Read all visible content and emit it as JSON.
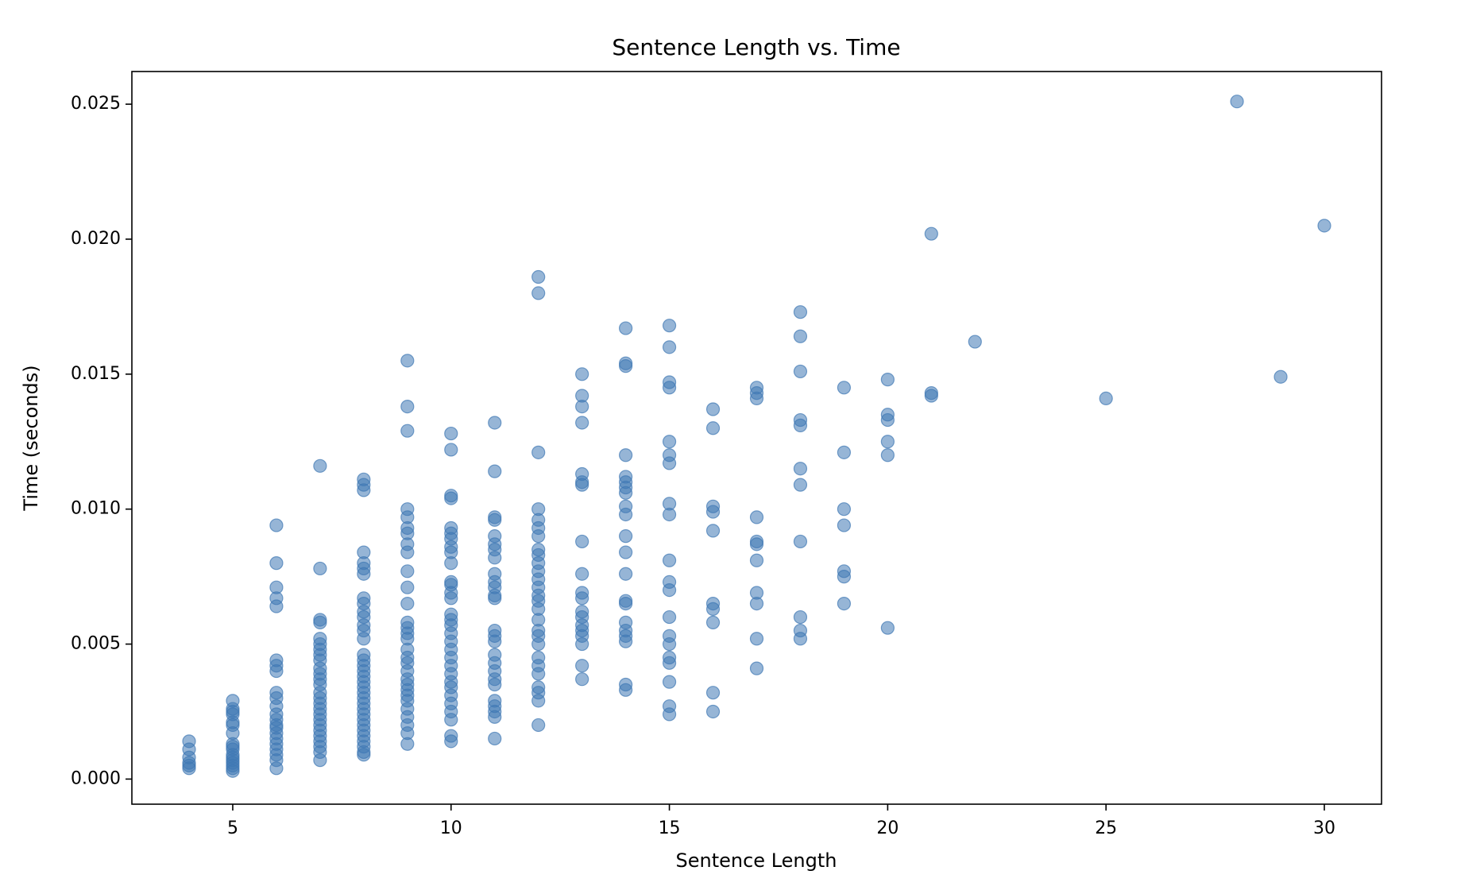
{
  "chart_data": {
    "type": "scatter",
    "title": "Sentence Length vs. Time",
    "x_label": "Sentence Length",
    "y_label": "Time (seconds)",
    "color": "#3f78b4",
    "grid": false,
    "xlim": [
      2.69,
      31.31
    ],
    "ylim": [
      -0.00093,
      0.02621
    ],
    "xticks": [
      5,
      10,
      15,
      20,
      25,
      30
    ],
    "yticks": [
      {
        "value": 0,
        "label": "0.000"
      },
      0.005,
      {
        "value": 0.01,
        "label": "0.010"
      },
      0.015,
      {
        "value": 0.02,
        "label": "0.020"
      },
      0.025
    ],
    "x": [
      4,
      4,
      4,
      4,
      4,
      4,
      5,
      5,
      5,
      5,
      5,
      5,
      5,
      5,
      5,
      5,
      5,
      5,
      5,
      5,
      5,
      5,
      5,
      6,
      6,
      6,
      6,
      6,
      6,
      6,
      6,
      6,
      6,
      6,
      6,
      6,
      6,
      6,
      6,
      6,
      6,
      6,
      6,
      6,
      6,
      7,
      7,
      7,
      7,
      7,
      7,
      7,
      7,
      7,
      7,
      7,
      7,
      7,
      7,
      7,
      7,
      7,
      7,
      7,
      7,
      7,
      7,
      7,
      7,
      7,
      7,
      8,
      8,
      8,
      8,
      8,
      8,
      8,
      8,
      8,
      8,
      8,
      8,
      8,
      8,
      8,
      8,
      8,
      8,
      8,
      8,
      8,
      8,
      8,
      8,
      8,
      8,
      8,
      8,
      8,
      8,
      8,
      8,
      8,
      8,
      9,
      9,
      9,
      9,
      9,
      9,
      9,
      9,
      9,
      9,
      9,
      9,
      9,
      9,
      9,
      9,
      9,
      9,
      9,
      9,
      9,
      9,
      9,
      9,
      9,
      9,
      9,
      9,
      9,
      9,
      10,
      10,
      10,
      10,
      10,
      10,
      10,
      10,
      10,
      10,
      10,
      10,
      10,
      10,
      10,
      10,
      10,
      10,
      10,
      10,
      10,
      10,
      10,
      10,
      10,
      10,
      10,
      10,
      10,
      10,
      10,
      11,
      11,
      11,
      11,
      11,
      11,
      11,
      11,
      11,
      11,
      11,
      11,
      11,
      11,
      11,
      11,
      11,
      11,
      11,
      11,
      11,
      11,
      11,
      11,
      11,
      11,
      12,
      12,
      12,
      12,
      12,
      12,
      12,
      12,
      12,
      12,
      12,
      12,
      12,
      12,
      12,
      12,
      12,
      12,
      12,
      12,
      12,
      12,
      12,
      12,
      12,
      12,
      12,
      13,
      13,
      13,
      13,
      13,
      13,
      13,
      13,
      13,
      13,
      13,
      13,
      13,
      13,
      13,
      13,
      13,
      13,
      13,
      14,
      14,
      14,
      14,
      14,
      14,
      14,
      14,
      14,
      14,
      14,
      14,
      14,
      14,
      14,
      14,
      14,
      14,
      14,
      14,
      14,
      15,
      15,
      15,
      15,
      15,
      15,
      15,
      15,
      15,
      15,
      15,
      15,
      15,
      15,
      15,
      15,
      15,
      15,
      15,
      15,
      16,
      16,
      16,
      16,
      16,
      16,
      16,
      16,
      16,
      16,
      17,
      17,
      17,
      17,
      17,
      17,
      17,
      17,
      17,
      17,
      17,
      18,
      18,
      18,
      18,
      18,
      18,
      18,
      18,
      18,
      18,
      18,
      19,
      19,
      19,
      19,
      19,
      19,
      19,
      20,
      20,
      20,
      20,
      20,
      20,
      21,
      21,
      21,
      22,
      25,
      28,
      29,
      30
    ],
    "y": [
      0.0014,
      0.0011,
      0.0008,
      0.0006,
      0.0005,
      0.0004,
      0.0029,
      0.0026,
      0.0025,
      0.0024,
      0.0021,
      0.002,
      0.0017,
      0.0013,
      0.0012,
      0.0011,
      0.0009,
      0.0008,
      0.0007,
      0.0006,
      0.0005,
      0.0004,
      0.0003,
      0.0094,
      0.008,
      0.0071,
      0.0067,
      0.0064,
      0.0044,
      0.0042,
      0.004,
      0.0032,
      0.003,
      0.0027,
      0.0024,
      0.0022,
      0.002,
      0.0019,
      0.0017,
      0.0015,
      0.0013,
      0.0011,
      0.0009,
      0.0007,
      0.0004,
      0.0116,
      0.0078,
      0.0059,
      0.0058,
      0.0052,
      0.005,
      0.0048,
      0.0046,
      0.0044,
      0.0041,
      0.0039,
      0.0037,
      0.0035,
      0.0032,
      0.003,
      0.0028,
      0.0026,
      0.0024,
      0.0022,
      0.002,
      0.0018,
      0.0016,
      0.0014,
      0.0012,
      0.001,
      0.0007,
      0.0111,
      0.0109,
      0.0107,
      0.0084,
      0.008,
      0.0078,
      0.0076,
      0.0067,
      0.0065,
      0.0062,
      0.006,
      0.0057,
      0.0055,
      0.0052,
      0.0046,
      0.0044,
      0.0042,
      0.004,
      0.0038,
      0.0036,
      0.0034,
      0.0032,
      0.003,
      0.0028,
      0.0026,
      0.0024,
      0.0022,
      0.002,
      0.0018,
      0.0016,
      0.0014,
      0.0012,
      0.001,
      0.0009,
      0.0155,
      0.0138,
      0.0129,
      0.01,
      0.0097,
      0.0093,
      0.0091,
      0.0087,
      0.0084,
      0.0077,
      0.0071,
      0.0065,
      0.0058,
      0.0056,
      0.0054,
      0.0052,
      0.0048,
      0.0045,
      0.0043,
      0.004,
      0.0037,
      0.0035,
      0.0033,
      0.0031,
      0.0029,
      0.0026,
      0.0023,
      0.002,
      0.0017,
      0.0013,
      0.0128,
      0.0122,
      0.0105,
      0.0104,
      0.0093,
      0.0091,
      0.0089,
      0.0086,
      0.0084,
      0.008,
      0.0073,
      0.0072,
      0.0069,
      0.0067,
      0.0061,
      0.0059,
      0.0057,
      0.0054,
      0.0051,
      0.0048,
      0.0045,
      0.0042,
      0.0039,
      0.0036,
      0.0034,
      0.0031,
      0.0028,
      0.0025,
      0.0022,
      0.0016,
      0.0014,
      0.0132,
      0.0114,
      0.0097,
      0.0096,
      0.009,
      0.0087,
      0.0085,
      0.0082,
      0.0076,
      0.0073,
      0.0071,
      0.0068,
      0.0067,
      0.0055,
      0.0053,
      0.0051,
      0.0046,
      0.0043,
      0.004,
      0.0037,
      0.0035,
      0.0029,
      0.0027,
      0.0025,
      0.0023,
      0.0015,
      0.0186,
      0.018,
      0.0121,
      0.01,
      0.0096,
      0.0093,
      0.009,
      0.0085,
      0.0083,
      0.008,
      0.0077,
      0.0074,
      0.0071,
      0.0068,
      0.0066,
      0.0063,
      0.0059,
      0.0055,
      0.0053,
      0.005,
      0.0045,
      0.0042,
      0.0039,
      0.0034,
      0.0032,
      0.0029,
      0.002,
      0.015,
      0.0142,
      0.0138,
      0.0132,
      0.0113,
      0.011,
      0.0109,
      0.0088,
      0.0076,
      0.0069,
      0.0067,
      0.0062,
      0.006,
      0.0057,
      0.0055,
      0.0053,
      0.005,
      0.0042,
      0.0037,
      0.0167,
      0.0154,
      0.0153,
      0.012,
      0.0112,
      0.011,
      0.0108,
      0.0106,
      0.0101,
      0.0098,
      0.009,
      0.0084,
      0.0076,
      0.0066,
      0.0065,
      0.0058,
      0.0055,
      0.0053,
      0.0051,
      0.0035,
      0.0033,
      0.0168,
      0.016,
      0.0147,
      0.0145,
      0.0125,
      0.012,
      0.0117,
      0.0102,
      0.0098,
      0.0081,
      0.0073,
      0.007,
      0.006,
      0.0053,
      0.005,
      0.0045,
      0.0043,
      0.0036,
      0.0027,
      0.0024,
      0.0137,
      0.013,
      0.0101,
      0.0099,
      0.0092,
      0.0065,
      0.0063,
      0.0058,
      0.0032,
      0.0025,
      0.0145,
      0.0143,
      0.0141,
      0.0097,
      0.0088,
      0.0087,
      0.0081,
      0.0069,
      0.0065,
      0.0052,
      0.0041,
      0.0173,
      0.0164,
      0.0151,
      0.0133,
      0.0131,
      0.0115,
      0.0109,
      0.0088,
      0.006,
      0.0055,
      0.0052,
      0.0145,
      0.0121,
      0.01,
      0.0094,
      0.0077,
      0.0075,
      0.0065,
      0.0148,
      0.0135,
      0.0133,
      0.0125,
      0.012,
      0.0056,
      0.0202,
      0.0143,
      0.0142,
      0.0162,
      0.0141,
      0.0251,
      0.0149,
      0.0205
    ]
  }
}
